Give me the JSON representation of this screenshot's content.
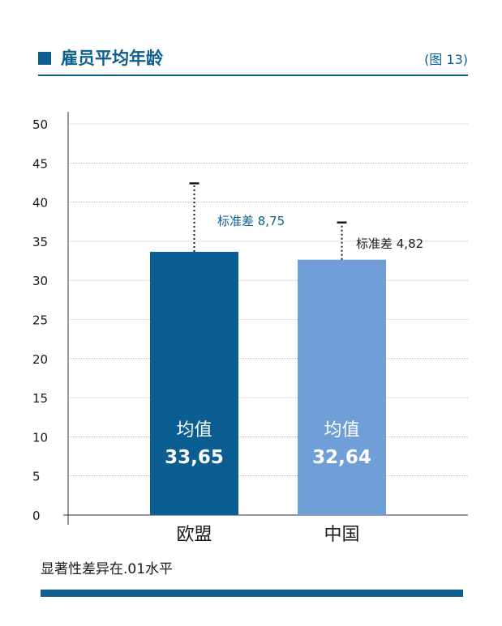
{
  "header": {
    "title": "雇员平均年龄",
    "figure_number": "(图 13)"
  },
  "note": "显著性差异在.01水平",
  "colors": {
    "accent": "#0d5f8e",
    "bar_eu": "#0a5e92",
    "bar_cn": "#6f9fd6"
  },
  "chart_data": {
    "type": "bar",
    "categories": [
      "欧盟",
      "中国"
    ],
    "values": [
      33.65,
      32.64
    ],
    "value_labels": [
      "均值\n33,65",
      "均值\n32,64"
    ],
    "mean_label": "均值",
    "value_texts": [
      "33,65",
      "32,64"
    ],
    "error_bars": [
      {
        "label": "标准差",
        "value_text": "8,75",
        "upper": 42.4
      },
      {
        "label": "标准差",
        "value_text": "4,82",
        "upper": 37.4
      }
    ],
    "ylim": [
      0,
      50
    ],
    "yticks": [
      0,
      5,
      10,
      15,
      20,
      25,
      30,
      35,
      40,
      45,
      50
    ],
    "grid": true
  }
}
